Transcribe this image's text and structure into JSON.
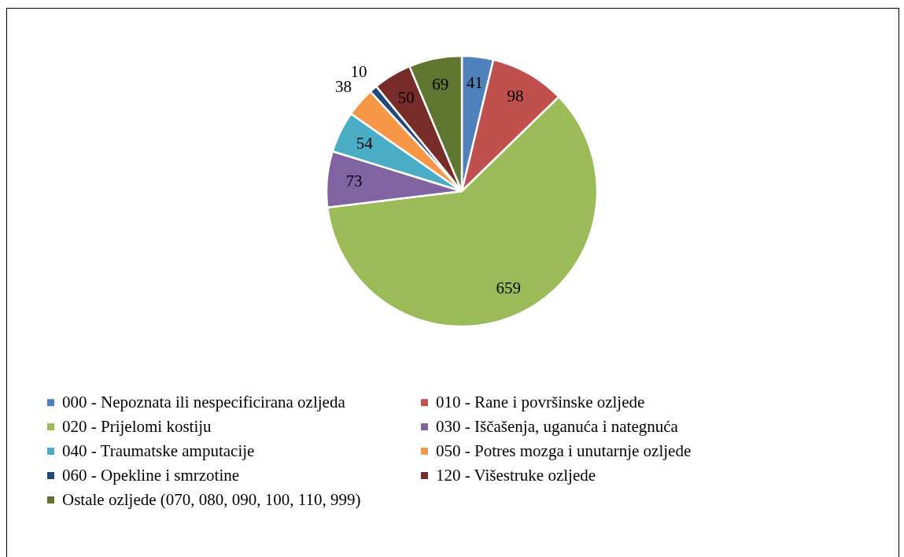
{
  "chart_data": {
    "type": "pie",
    "categories": [
      "000 - Nepoznata ili nespecificirana ozljeda",
      "010 - Rane i površinske ozljede",
      "020 - Prijelomi kostiju",
      "030 - Iščašenja, uganuća i nategnuća",
      "040 - Traumatske amputacije",
      "050 - Potres mozga i unutarnje ozljede",
      "060 - Opekline i smrzotine",
      "120 - Višestruke ozljede",
      "Ostale ozljede (070, 080, 090, 100, 110, 999)"
    ],
    "values": [
      41,
      98,
      659,
      73,
      54,
      38,
      10,
      50,
      69
    ],
    "colors": [
      "#4f81bd",
      "#c0504d",
      "#9bbb59",
      "#8064a2",
      "#4bacc6",
      "#f79646",
      "#1f497d",
      "#772c2a",
      "#5f7530"
    ],
    "data_labels": true,
    "legend": "bottom"
  }
}
